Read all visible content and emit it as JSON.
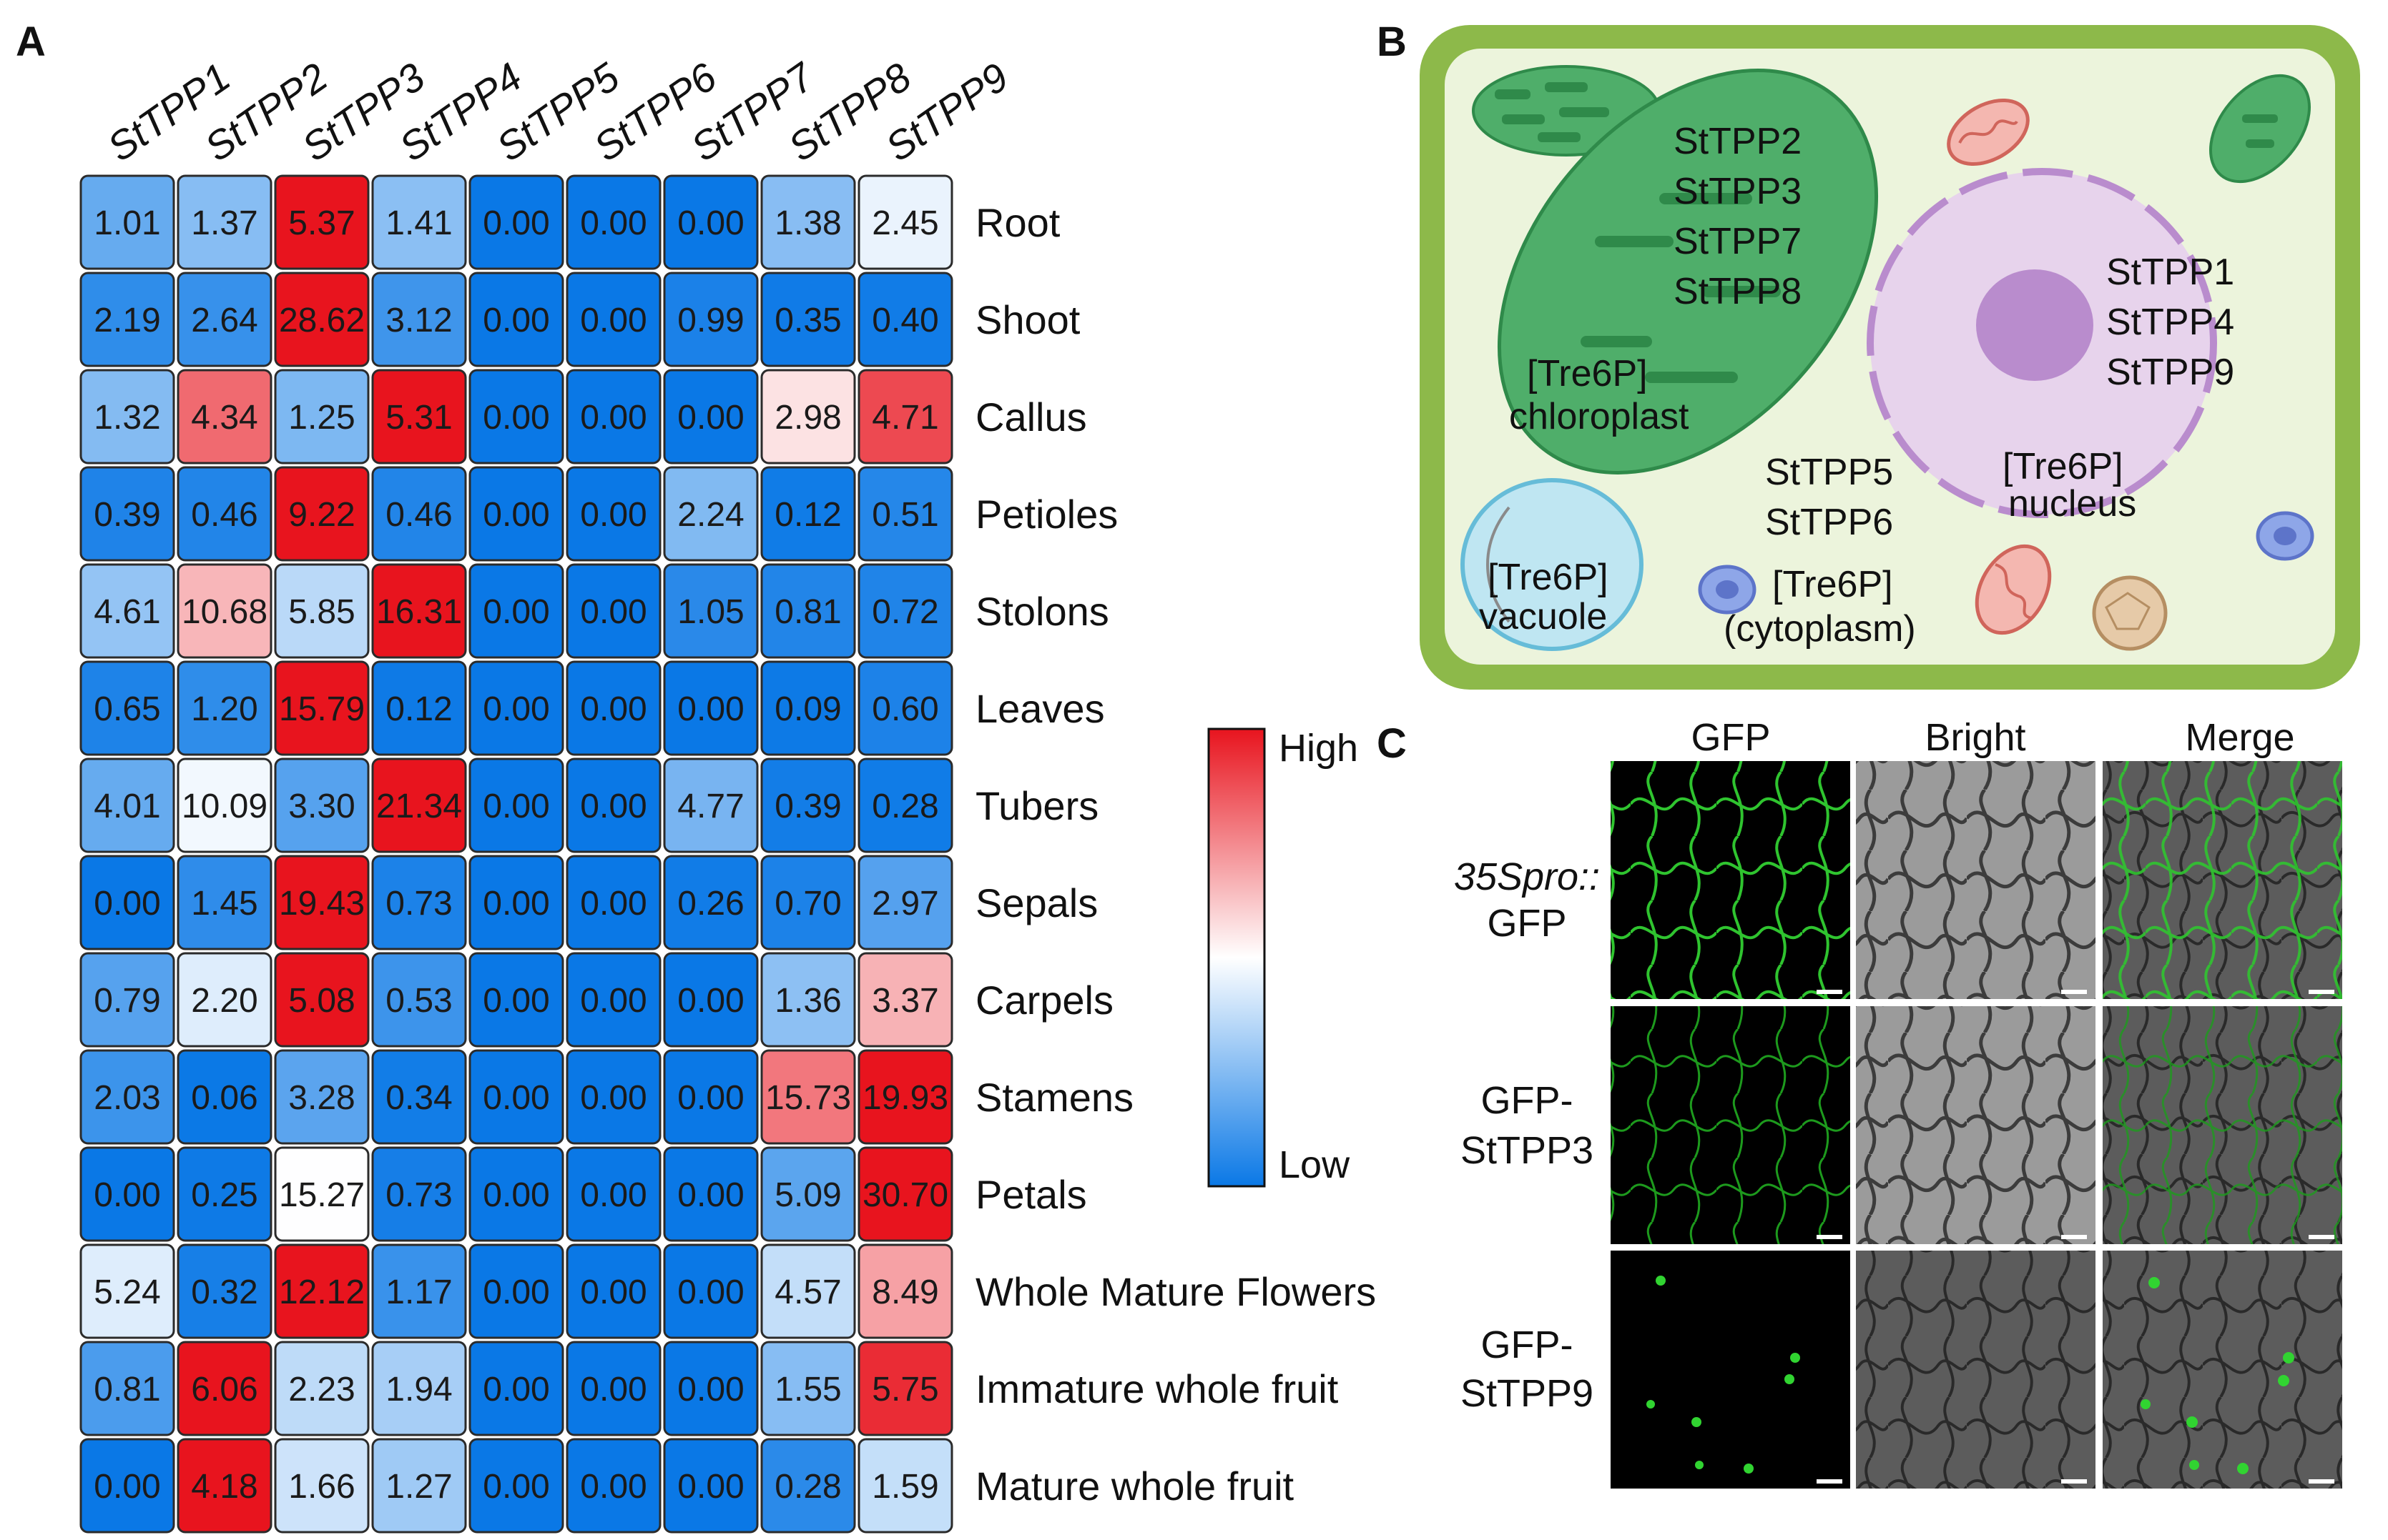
{
  "panels": {
    "a": "A",
    "b": "B",
    "c": "C"
  },
  "chart_data": {
    "type": "heatmap",
    "columns": [
      "StTPP1",
      "StTPP2",
      "StTPP3",
      "StTPP4",
      "StTPP5",
      "StTPP6",
      "StTPP7",
      "StTPP8",
      "StTPP9"
    ],
    "rows": [
      "Root",
      "Shoot",
      "Callus",
      "Petioles",
      "Stolons",
      "Leaves",
      "Tubers",
      "Sepals",
      "Carpels",
      "Stamens",
      "Petals",
      "Whole Mature Flowers",
      "Immature whole fruit",
      "Mature whole fruit"
    ],
    "values": [
      [
        "1.01",
        "1.37",
        "5.37",
        "1.41",
        "0.00",
        "0.00",
        "0.00",
        "1.38",
        "2.45"
      ],
      [
        "2.19",
        "2.64",
        "28.62",
        "3.12",
        "0.00",
        "0.00",
        "0.99",
        "0.35",
        "0.40"
      ],
      [
        "1.32",
        "4.34",
        "1.25",
        "5.31",
        "0.00",
        "0.00",
        "0.00",
        "2.98",
        "4.71"
      ],
      [
        "0.39",
        "0.46",
        "9.22",
        "0.46",
        "0.00",
        "0.00",
        "2.24",
        "0.12",
        "0.51"
      ],
      [
        "4.61",
        "10.68",
        "5.85",
        "16.31",
        "0.00",
        "0.00",
        "1.05",
        "0.81",
        "0.72"
      ],
      [
        "0.65",
        "1.20",
        "15.79",
        "0.12",
        "0.00",
        "0.00",
        "0.00",
        "0.09",
        "0.60"
      ],
      [
        "4.01",
        "10.09",
        "3.30",
        "21.34",
        "0.00",
        "0.00",
        "4.77",
        "0.39",
        "0.28"
      ],
      [
        "0.00",
        "1.45",
        "19.43",
        "0.73",
        "0.00",
        "0.00",
        "0.26",
        "0.70",
        "2.97"
      ],
      [
        "0.79",
        "2.20",
        "5.08",
        "0.53",
        "0.00",
        "0.00",
        "0.00",
        "1.36",
        "3.37"
      ],
      [
        "2.03",
        "0.06",
        "3.28",
        "0.34",
        "0.00",
        "0.00",
        "0.00",
        "15.73",
        "19.93"
      ],
      [
        "0.00",
        "0.25",
        "15.27",
        "0.73",
        "0.00",
        "0.00",
        "0.00",
        "5.09",
        "30.70"
      ],
      [
        "5.24",
        "0.32",
        "12.12",
        "1.17",
        "0.00",
        "0.00",
        "0.00",
        "4.57",
        "8.49"
      ],
      [
        "0.81",
        "6.06",
        "2.23",
        "1.94",
        "0.00",
        "0.00",
        "0.00",
        "1.55",
        "5.75"
      ],
      [
        "0.00",
        "4.18",
        "1.66",
        "1.27",
        "0.00",
        "0.00",
        "0.00",
        "0.28",
        "1.59"
      ]
    ],
    "colorscale": {
      "low_color": "#0a78e6",
      "mid_color": "#ffffff",
      "high_color": "#e8141e",
      "scaling": "row"
    },
    "legend": {
      "high": "High",
      "low": "Low",
      "placement": "right"
    }
  },
  "cell_diagram": {
    "chloroplast_genes": [
      "StTPP2",
      "StTPP3",
      "StTPP7",
      "StTPP8"
    ],
    "chloroplast_label": [
      "[Tre6P]",
      "chloroplast"
    ],
    "nucleus_genes": [
      "StTPP1",
      "StTPP4",
      "StTPP9"
    ],
    "nucleus_label": [
      "[Tre6P]",
      "nucleus"
    ],
    "cytoplasm_genes": [
      "StTPP5",
      "StTPP6"
    ],
    "cytoplasm_label": [
      "[Tre6P]",
      "(cytoplasm)"
    ],
    "vacuole_label": [
      "[Tre6P]",
      "vacuole"
    ],
    "colors": {
      "cell_wall": "#8db94a",
      "cytoplasm": "#ecf4dc",
      "chloroplast": "#4fae6a",
      "nucleus": "#e7d3ec",
      "vacuole": "#bfe6f2"
    }
  },
  "microscopy": {
    "column_headers": [
      "GFP",
      "Bright",
      "Merge"
    ],
    "rows": [
      {
        "label_line1": "35Spro::",
        "label_line2": "GFP"
      },
      {
        "label_line1": "GFP-",
        "label_line2": "StTPP3"
      },
      {
        "label_line1": "GFP-",
        "label_line2": "StTPP9"
      }
    ]
  }
}
